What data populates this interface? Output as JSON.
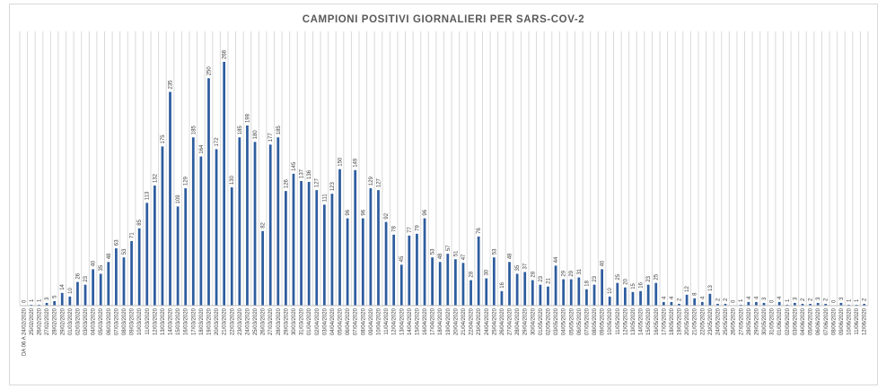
{
  "chart_data": {
    "type": "bar",
    "title": "CAMPIONI POSITIVI GIORNALIERI PER SARS-COV-2",
    "xlabel": "",
    "ylabel": "",
    "ylim": [
      0,
      275
    ],
    "grid": "vertical",
    "legend": "none",
    "bar_color": "#2e5d9f",
    "categories": [
      "DA 06 A 24/02/2020",
      "25/02/2020",
      "26/02/2020",
      "27/02/2020",
      "28/02/2020",
      "29/02/2020",
      "01/03/2020",
      "02/03/2020",
      "03/03/2020",
      "04/03/2020",
      "05/03/2020",
      "06/03/2020",
      "07/03/2020",
      "08/03/2020",
      "09/03/2020",
      "10/03/2020",
      "11/03/2020",
      "12/03/2020",
      "13/03/2020",
      "14/03/2020",
      "15/03/2020",
      "16/03/2020",
      "17/03/2020",
      "18/03/2020",
      "19/03/2020",
      "20/03/2020",
      "21/03/2020",
      "22/03/2020",
      "23/03/2020",
      "24/03/2020",
      "25/03/2020",
      "26/03/2020",
      "27/03/2020",
      "28/03/2020",
      "29/03/2020",
      "30/03/2020",
      "31/03/2020",
      "01/04/2020",
      "02/04/2020",
      "03/04/2020",
      "04/04/2020",
      "05/04/2020",
      "06/04/2020",
      "07/04/2020",
      "08/04/2020",
      "09/04/2020",
      "10/04/2020",
      "11/04/2020",
      "12/04/2020",
      "13/04/2020",
      "14/04/2020",
      "15/04/2020",
      "16/04/2020",
      "17/04/2020",
      "18/04/2020",
      "19/04/2020",
      "20/04/2020",
      "21/04/2020",
      "22/04/2020",
      "23/04/2020",
      "24/04/2020",
      "25/04/2020",
      "26/04/2020",
      "27/04/2020",
      "28/04/2020",
      "29/04/2020",
      "30/04/2020",
      "01/05/2020",
      "02/05/2020",
      "03/05/2020",
      "04/05/2020",
      "05/05/2020",
      "06/05/2020",
      "07/05/2020",
      "08/05/2020",
      "09/05/2020",
      "10/05/2020",
      "11/05/2020",
      "12/05/2020",
      "13/05/2020",
      "14/05/2020",
      "15/05/2020",
      "16/05/2020",
      "17/05/2020",
      "18/05/2020",
      "19/05/2020",
      "20/05/2020",
      "21/05/2020",
      "22/05/2020",
      "23/05/2020",
      "24/05/2020",
      "25/05/2020",
      "26/05/2020",
      "27/05/2020",
      "28/05/2020",
      "29/05/2020",
      "30/05/2020",
      "31/05/2020",
      "01/06/2020",
      "02/06/2020",
      "03/06/2020",
      "04/06/2020",
      "05/06/2020",
      "06/06/2020",
      "07/06/2020",
      "08/06/2020",
      "09/06/2020",
      "10/06/2020",
      "11/06/2020",
      "12/06/2020"
    ],
    "values": [
      0,
      1,
      1,
      3,
      5,
      14,
      10,
      26,
      23,
      40,
      35,
      48,
      63,
      53,
      71,
      85,
      113,
      132,
      175,
      235,
      109,
      129,
      185,
      164,
      250,
      172,
      268,
      130,
      185,
      198,
      180,
      82,
      177,
      185,
      126,
      145,
      137,
      136,
      127,
      111,
      123,
      150,
      96,
      149,
      96,
      129,
      127,
      92,
      78,
      45,
      77,
      79,
      96,
      53,
      48,
      57,
      51,
      47,
      28,
      76,
      30,
      53,
      16,
      48,
      35,
      37,
      28,
      23,
      21,
      44,
      29,
      29,
      31,
      18,
      23,
      40,
      10,
      25,
      20,
      15,
      16,
      23,
      25,
      4,
      4,
      2,
      12,
      8,
      4,
      13,
      2,
      2,
      0,
      1,
      4,
      4,
      3,
      0,
      4,
      1,
      3,
      2,
      2,
      3,
      2,
      0,
      3,
      1,
      1,
      2
    ]
  }
}
